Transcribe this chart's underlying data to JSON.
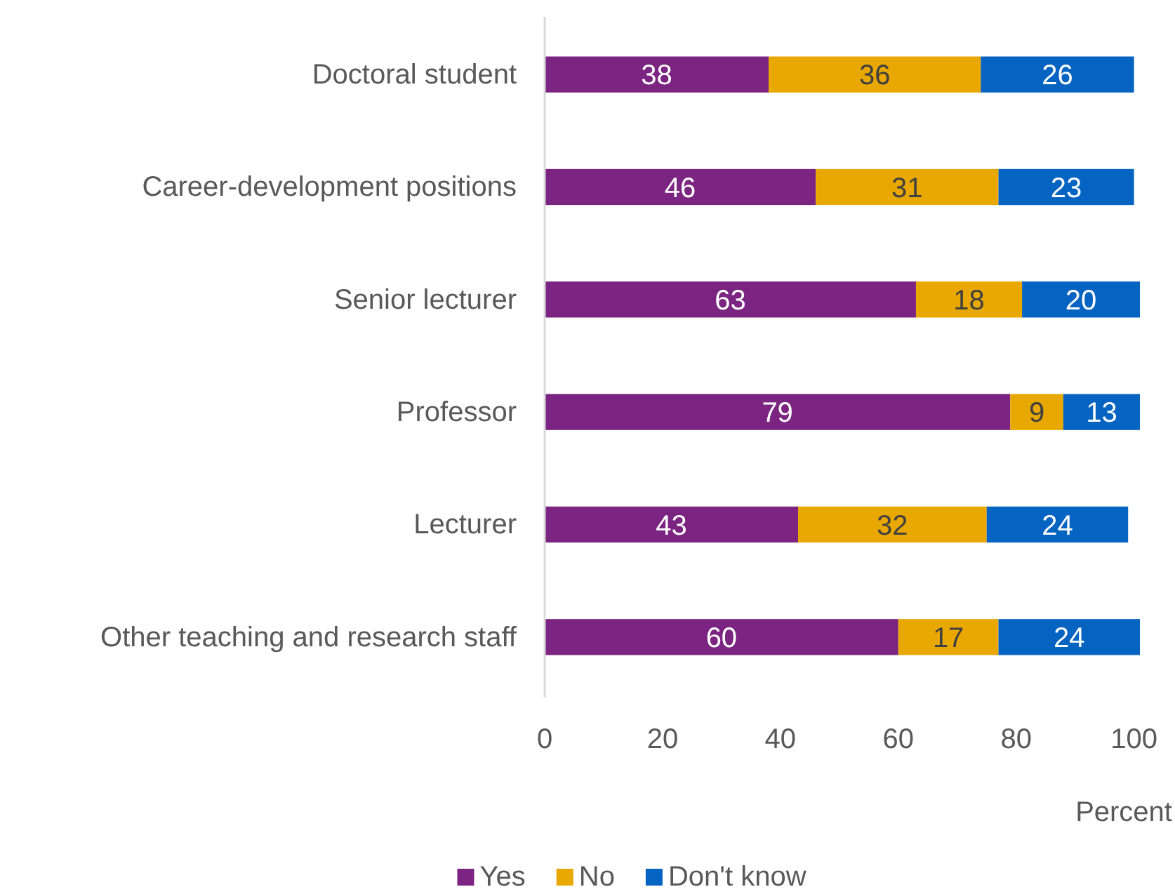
{
  "chart_data": {
    "type": "bar",
    "orientation": "horizontal",
    "stacked": true,
    "xlabel": "Percent",
    "categories": [
      "Doctoral student",
      "Career-development positions",
      "Senior lecturer",
      "Professor",
      "Lecturer",
      "Other teaching and research staff"
    ],
    "series": [
      {
        "name": "Yes",
        "color": "#7b2481",
        "values": [
          38,
          46,
          63,
          79,
          43,
          60
        ]
      },
      {
        "name": "No",
        "color": "#e8a800",
        "values": [
          36,
          31,
          18,
          9,
          32,
          17
        ]
      },
      {
        "name": "Don't know",
        "color": "#0563c1",
        "values": [
          26,
          23,
          20,
          13,
          24,
          24
        ]
      }
    ],
    "xlim": [
      0,
      101
    ],
    "xticks": [
      0,
      20,
      40,
      60,
      80,
      100
    ],
    "data_labels": true,
    "legend": "bottom",
    "grid": false
  }
}
